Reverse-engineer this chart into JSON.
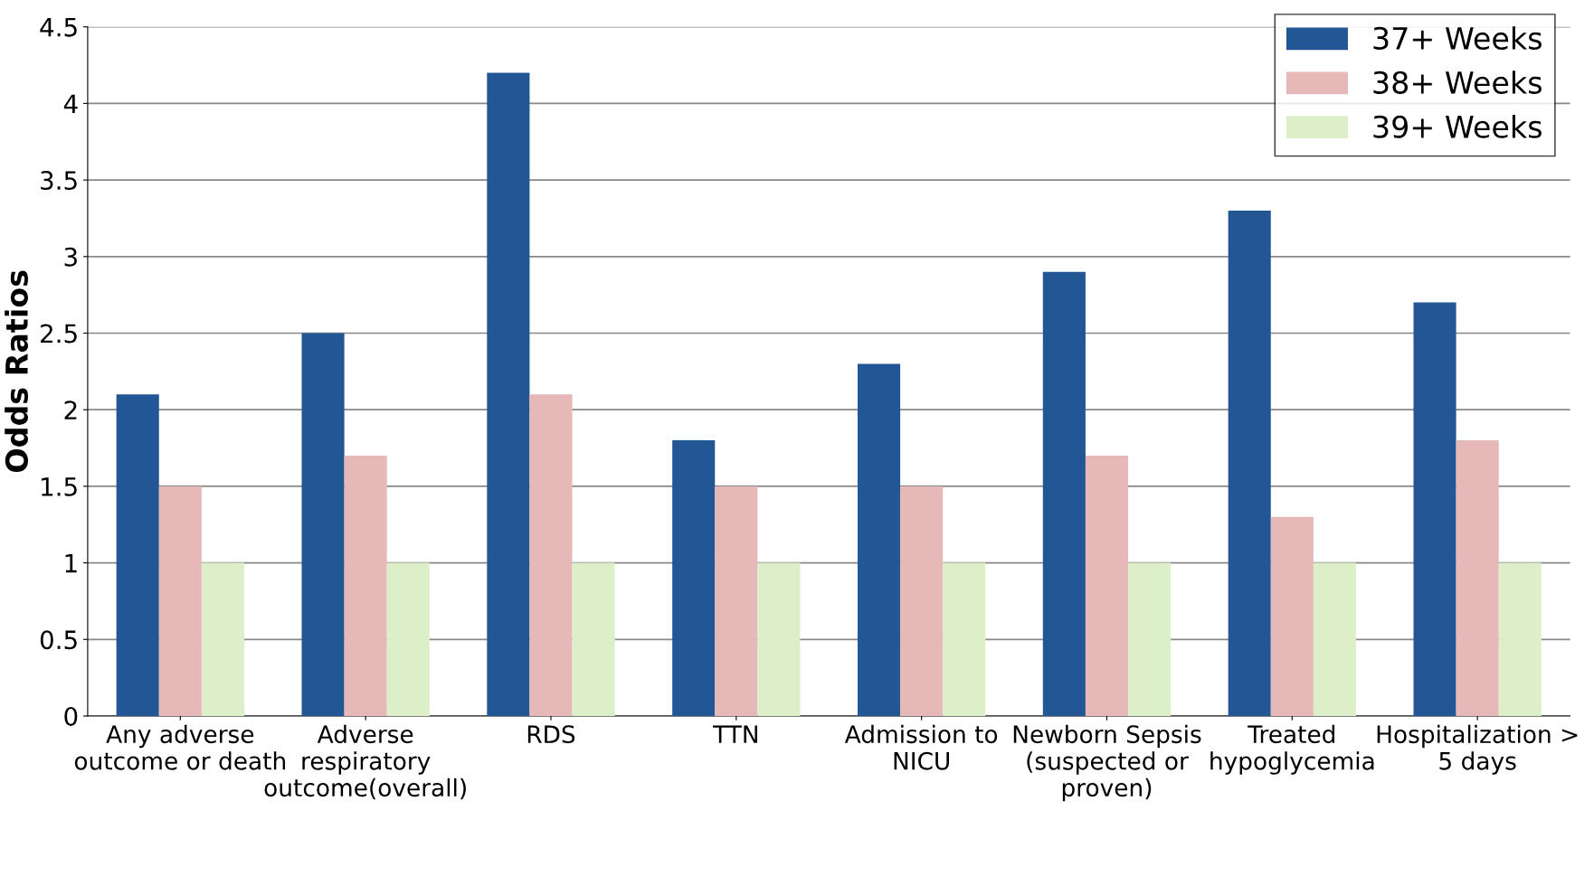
{
  "chart_data": {
    "type": "bar",
    "ylabel": "Odds Ratios",
    "categories": [
      "Any adverse\noutcome or death",
      "Adverse\nrespiratory\noutcome(overall)",
      "RDS",
      "TTN",
      "Admission to\nNICU",
      "Newborn Sepsis\n(suspected or\nproven)",
      "Treated\nhypoglycemia",
      "Hospitalization >\n5 days"
    ],
    "series": [
      {
        "name": "37+ Weeks",
        "color": "#235694",
        "values": [
          2.1,
          2.5,
          4.2,
          1.8,
          2.3,
          2.9,
          3.3,
          2.7
        ]
      },
      {
        "name": "38+ Weeks",
        "color": "#e6b9b8",
        "values": [
          1.5,
          1.7,
          2.1,
          1.5,
          1.5,
          1.7,
          1.3,
          1.8
        ]
      },
      {
        "name": "39+ Weeks",
        "color": "#dcefc8",
        "values": [
          1,
          1,
          1,
          1,
          1,
          1,
          1,
          1
        ]
      }
    ],
    "ylim": [
      0,
      4.5
    ],
    "yticks": [
      0,
      0.5,
      1,
      1.5,
      2,
      2.5,
      3,
      3.5,
      4,
      4.5
    ],
    "grid": "y",
    "legend": "top right"
  }
}
